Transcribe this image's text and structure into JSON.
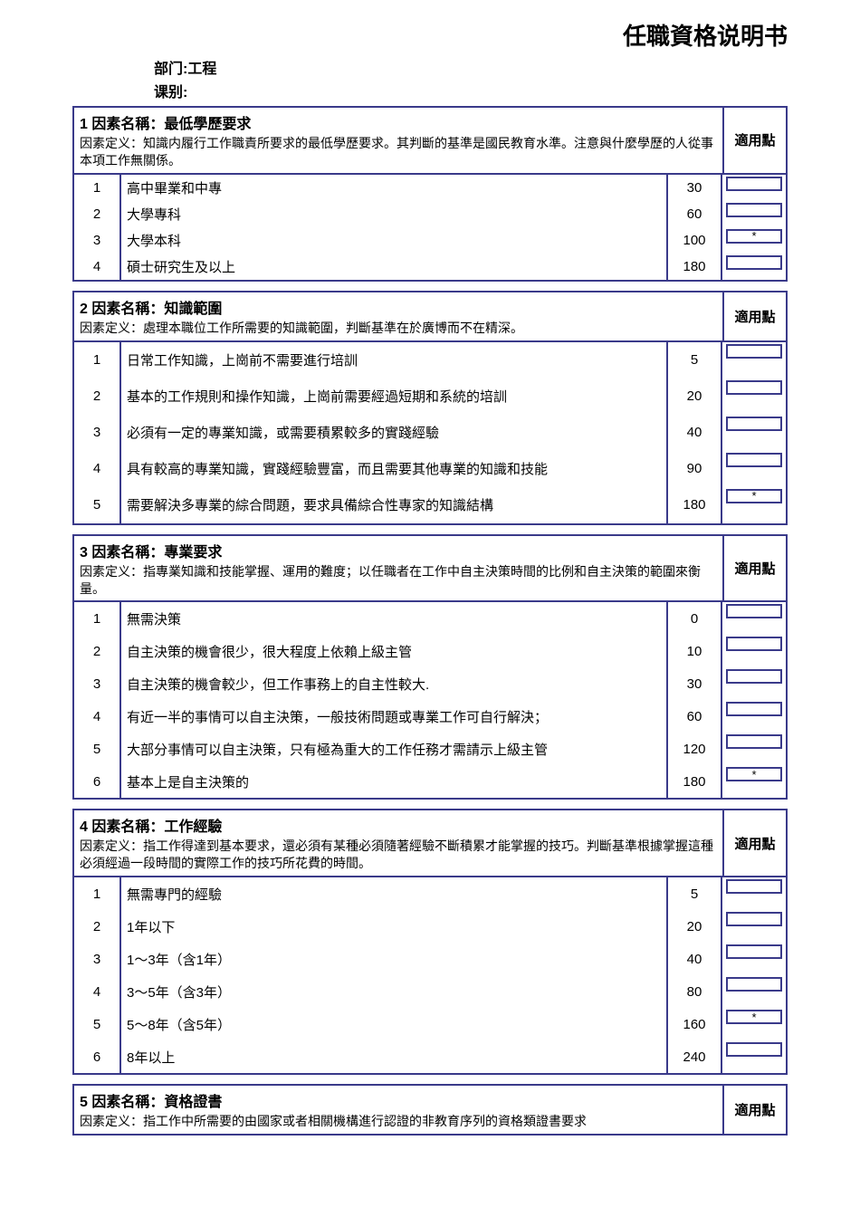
{
  "page_title": "任職資格说明书",
  "header": {
    "dept_label": "部门:",
    "dept_value": "工程",
    "class_label": "课别:"
  },
  "apply_label": "適用點",
  "factors": [
    {
      "num": "1",
      "name": "因素名稱：最低學歷要求",
      "def": "因素定义：知識内履行工作職責所要求的最低學歷要求。其判斷的基準是國民教育水準。注意與什麼學歷的人從事本項工作無關係。",
      "options": [
        {
          "n": "1",
          "d": "高中畢業和中專",
          "s": "30",
          "m": ""
        },
        {
          "n": "2",
          "d": "大學專科",
          "s": "60",
          "m": ""
        },
        {
          "n": "3",
          "d": "大學本科",
          "s": "100",
          "m": "*"
        },
        {
          "n": "4",
          "d": "碩士研究生及以上",
          "s": "180",
          "m": ""
        }
      ]
    },
    {
      "num": "2",
      "name": "因素名稱：知識範圍",
      "def": "因素定义：處理本職位工作所需要的知識範圍，判斷基準在於廣博而不在精深。",
      "options": [
        {
          "n": "1",
          "d": "日常工作知識，上崗前不需要進行培訓",
          "s": "5",
          "m": ""
        },
        {
          "n": "2",
          "d": "基本的工作規則和操作知識，上崗前需要經過短期和系統的培訓",
          "s": "20",
          "m": ""
        },
        {
          "n": "3",
          "d": "必須有一定的專業知識，或需要積累較多的實踐經驗",
          "s": "40",
          "m": ""
        },
        {
          "n": "4",
          "d": "具有較高的專業知識，實踐經驗豐富，而且需要其他專業的知識和技能",
          "s": "90",
          "m": ""
        },
        {
          "n": "5",
          "d": "需要解決多專業的綜合問題，要求具備綜合性專家的知識結構",
          "s": "180",
          "m": "*"
        }
      ]
    },
    {
      "num": "3",
      "name": "因素名稱：專業要求",
      "def": "因素定义：指專業知識和技能掌握、運用的難度；以任職者在工作中自主決策時間的比例和自主決策的範圍來衡量。",
      "options": [
        {
          "n": "1",
          "d": "無需決策",
          "s": "0",
          "m": ""
        },
        {
          "n": "2",
          "d": "自主決策的機會很少，很大程度上依賴上級主管",
          "s": "10",
          "m": ""
        },
        {
          "n": "3",
          "d": "自主決策的機會較少，但工作事務上的自主性較大.",
          "s": "30",
          "m": ""
        },
        {
          "n": "4",
          "d": "有近一半的事情可以自主決策，一般技術問題或專業工作可自行解決；",
          "s": "60",
          "m": ""
        },
        {
          "n": "5",
          "d": "大部分事情可以自主決策，只有極為重大的工作任務才需請示上級主管",
          "s": "120",
          "m": ""
        },
        {
          "n": "6",
          "d": "基本上是自主決策的",
          "s": "180",
          "m": "*"
        }
      ]
    },
    {
      "num": "4",
      "name": "因素名稱：工作經驗",
      "def": "因素定义：指工作得達到基本要求，還必須有某種必須隨著經驗不斷積累才能掌握的技巧。判斷基準根據掌握這種必須經過一段時間的實際工作的技巧所花費的時間。",
      "options": [
        {
          "n": "1",
          "d": "無需專門的經驗",
          "s": "5",
          "m": ""
        },
        {
          "n": "2",
          "d": "1年以下",
          "s": "20",
          "m": ""
        },
        {
          "n": "3",
          "d": "1～3年（含1年）",
          "s": "40",
          "m": ""
        },
        {
          "n": "4",
          "d": "3～5年（含3年）",
          "s": "80",
          "m": ""
        },
        {
          "n": "5",
          "d": "5～8年（含5年）",
          "s": "160",
          "m": "*"
        },
        {
          "n": "6",
          "d": "8年以上",
          "s": "240",
          "m": ""
        }
      ]
    },
    {
      "num": "5",
      "name": "因素名稱：資格證書",
      "def": "因素定义：指工作中所需要的由國家或者相關機構進行認證的非教育序列的資格類證書要求",
      "options": []
    }
  ]
}
